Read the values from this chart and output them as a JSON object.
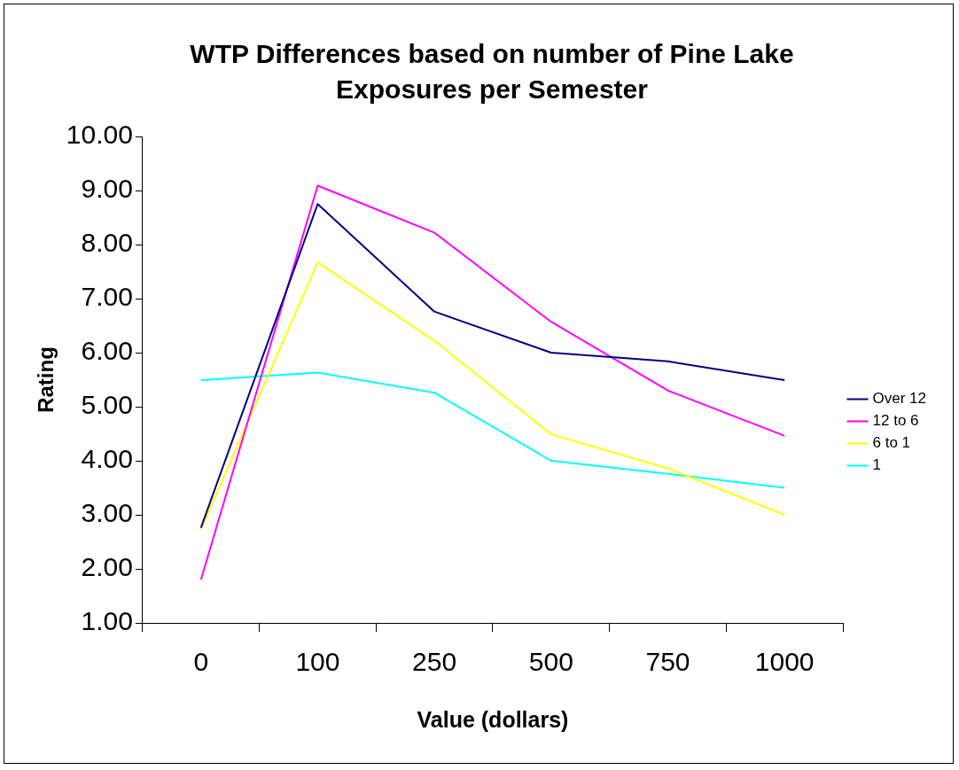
{
  "chart_data": {
    "type": "line",
    "title": "WTP Differences based on number of Pine Lake Exposures per Semester",
    "xlabel": "Value (dollars)",
    "ylabel": "Rating",
    "categories": [
      "0",
      "100",
      "250",
      "500",
      "750",
      "1000"
    ],
    "series": [
      {
        "name": "Over 12",
        "color": "#000080",
        "values": [
          2.76,
          8.75,
          6.76,
          6.0,
          5.84,
          5.49
        ]
      },
      {
        "name": "12 to 6",
        "color": "#ff00ff",
        "values": [
          1.8,
          9.09,
          8.22,
          6.57,
          5.3,
          4.46
        ]
      },
      {
        "name": "6 to 1",
        "color": "#ffff00",
        "values": [
          2.73,
          7.67,
          6.22,
          4.49,
          3.86,
          3.0
        ]
      },
      {
        "name": "1",
        "color": "#00ffff",
        "values": [
          5.49,
          5.63,
          5.26,
          4.0,
          3.76,
          3.5
        ]
      }
    ],
    "ylim": [
      1,
      10
    ],
    "yticks": [
      {
        "value": 1,
        "label": "1.00"
      },
      {
        "value": 2,
        "label": "2.00"
      },
      {
        "value": 3,
        "label": "3.00"
      },
      {
        "value": 4,
        "label": "4.00"
      },
      {
        "value": 5,
        "label": "5.00"
      },
      {
        "value": 6,
        "label": "6.00"
      },
      {
        "value": 7,
        "label": "7.00"
      },
      {
        "value": 8,
        "label": "8.00"
      },
      {
        "value": 9,
        "label": "9.00"
      },
      {
        "value": 10,
        "label": "10.00"
      }
    ],
    "grid": false,
    "legend": "right",
    "marker": "none",
    "line_style": "solid"
  }
}
